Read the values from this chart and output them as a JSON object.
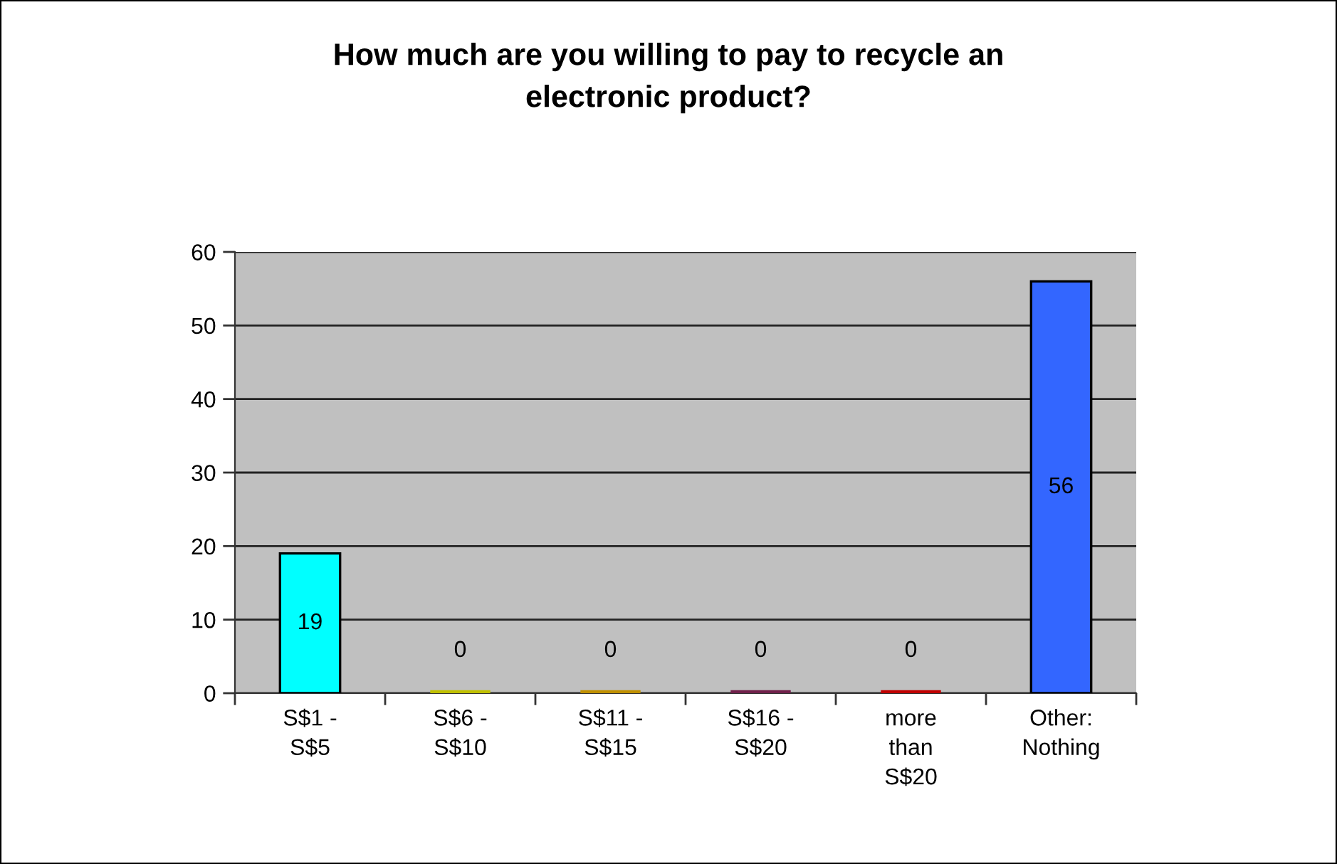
{
  "chart_data": {
    "type": "bar",
    "title": "How much are you willing to pay to recycle an\nelectronic product?",
    "categories": [
      "S$1 -\nS$5",
      "S$6 -\nS$10",
      "S$11 -\nS$15",
      "S$16 -\nS$20",
      "more\nthan\nS$20",
      "Other:\nNothing"
    ],
    "values": [
      19,
      0,
      0,
      0,
      0,
      56
    ],
    "colors": [
      "#00ffff",
      "#c0c000",
      "#c09000",
      "#70204a",
      "#c00000",
      "#3366ff"
    ],
    "ylim": [
      0,
      60
    ],
    "yticks": [
      0,
      10,
      20,
      30,
      40,
      50,
      60
    ],
    "grid": "y",
    "data_labels": true
  }
}
